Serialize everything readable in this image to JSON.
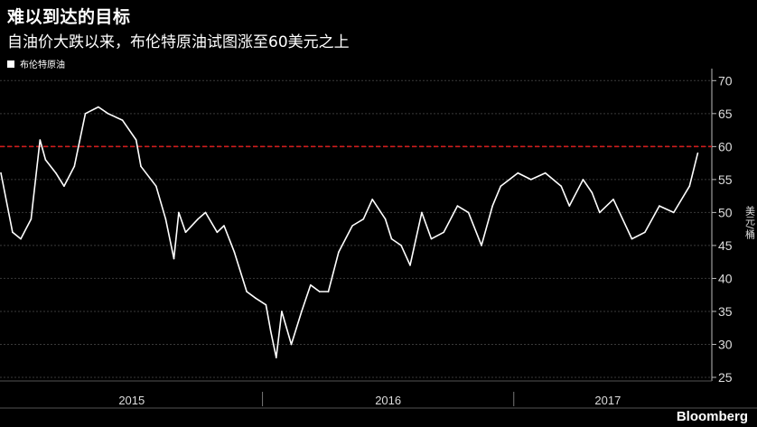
{
  "header": {
    "title": "难以到达的目标",
    "subtitle": "自油价大跌以来，布伦特原油试图涨至60美元之上"
  },
  "brand": {
    "label": "Bloomberg"
  },
  "colors": {
    "background": "#000000",
    "line": "#ffffff",
    "reference": "#d01c1c",
    "grid": "#3a3a3a"
  },
  "chart_data": {
    "type": "line",
    "title": "难以到达的目标",
    "subtitle": "自油价大跌以来，布伦特原油试图涨至60美元之上",
    "ylabel": "美元/桶",
    "ylim": [
      25,
      71
    ],
    "yticks": [
      25,
      30,
      35,
      40,
      45,
      50,
      55,
      60,
      65,
      70
    ],
    "xtick_labels": [
      "2015",
      "2016",
      "2017"
    ],
    "grid": true,
    "legend_position": "top-left",
    "reference_line": {
      "y": 60,
      "style": "dashed"
    },
    "series": [
      {
        "name": "布伦特原油",
        "x": [
          "2014-12-15",
          "2015-01-01",
          "2015-01-13",
          "2015-01-28",
          "2015-02-10",
          "2015-02-18",
          "2015-03-05",
          "2015-03-17",
          "2015-04-01",
          "2015-04-17",
          "2015-05-06",
          "2015-05-20",
          "2015-06-10",
          "2015-06-30",
          "2015-07-07",
          "2015-07-29",
          "2015-08-12",
          "2015-08-24",
          "2015-08-31",
          "2015-09-10",
          "2015-09-28",
          "2015-10-09",
          "2015-10-26",
          "2015-11-05",
          "2015-11-20",
          "2015-12-08",
          "2015-12-21",
          "2016-01-05",
          "2016-01-12",
          "2016-01-20",
          "2016-01-28",
          "2016-02-11",
          "2016-02-26",
          "2016-03-10",
          "2016-03-23",
          "2016-04-05",
          "2016-04-20",
          "2016-05-10",
          "2016-05-26",
          "2016-06-08",
          "2016-06-27",
          "2016-07-06",
          "2016-07-20",
          "2016-08-02",
          "2016-08-19",
          "2016-09-02",
          "2016-09-20",
          "2016-10-10",
          "2016-10-26",
          "2016-11-14",
          "2016-11-30",
          "2016-12-12",
          "2017-01-06",
          "2017-01-25",
          "2017-02-15",
          "2017-03-10",
          "2017-03-22",
          "2017-04-11",
          "2017-04-24",
          "2017-05-05",
          "2017-05-25",
          "2017-06-21",
          "2017-07-10",
          "2017-07-31",
          "2017-08-21",
          "2017-09-13",
          "2017-09-25"
        ],
        "values": [
          56,
          47,
          46,
          49,
          61,
          58,
          56,
          54,
          57,
          65,
          66,
          65,
          64,
          61,
          57,
          54,
          49,
          43,
          50,
          47,
          49,
          50,
          47,
          48,
          44,
          38,
          37,
          36,
          32,
          28,
          35,
          30,
          35,
          39,
          38,
          38,
          44,
          48,
          49,
          52,
          49,
          46,
          45,
          42,
          50,
          46,
          47,
          51,
          50,
          45,
          51,
          54,
          56,
          55,
          56,
          54,
          51,
          55,
          53,
          50,
          52,
          46,
          47,
          51,
          50,
          54,
          59
        ]
      }
    ]
  }
}
